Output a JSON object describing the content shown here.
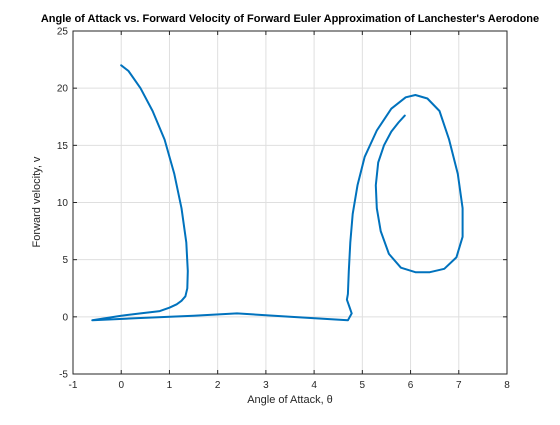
{
  "chart_data": {
    "type": "line",
    "title": "Angle of Attack vs. Forward Velocity of Forward Euler Approximation of Lanchester's Aerodone",
    "xlabel": "Angle of Attack, θ",
    "ylabel": "Forward velocity, v",
    "xlim": [
      -1,
      8
    ],
    "ylim": [
      -5,
      25
    ],
    "xticks": [
      -1,
      0,
      1,
      2,
      3,
      4,
      5,
      6,
      7,
      8
    ],
    "yticks": [
      -5,
      0,
      5,
      10,
      15,
      20,
      25
    ],
    "xtick_labels": [
      "-1",
      "0",
      "1",
      "2",
      "3",
      "4",
      "5",
      "6",
      "7",
      "8"
    ],
    "ytick_labels": [
      "-5",
      "0",
      "5",
      "10",
      "15",
      "20",
      "25"
    ],
    "grid": true,
    "line_color": "#0072BD",
    "series": [
      {
        "x": [
          0.0,
          0.15,
          0.4,
          0.65,
          0.9,
          1.1,
          1.25,
          1.35,
          1.38,
          1.37,
          1.33,
          1.25,
          1.15,
          1.0,
          0.8,
          0.4,
          0.0,
          -0.3,
          -0.6,
          0.4,
          1.5,
          2.4,
          3.5,
          4.7,
          4.78,
          4.73,
          4.68,
          4.7,
          4.72,
          4.75,
          4.8,
          4.9,
          5.05,
          5.3,
          5.6,
          5.9,
          6.1,
          6.35,
          6.6,
          6.8,
          6.98,
          7.08,
          7.08,
          6.95,
          6.7,
          6.4,
          6.1,
          5.8,
          5.55,
          5.38,
          5.3,
          5.28,
          5.33,
          5.45,
          5.6,
          5.75,
          5.88
        ],
        "y": [
          22.0,
          21.5,
          20.0,
          18.0,
          15.5,
          12.5,
          9.5,
          6.5,
          4.0,
          2.5,
          1.8,
          1.4,
          1.1,
          0.8,
          0.5,
          0.3,
          0.1,
          -0.1,
          -0.3,
          -0.1,
          0.1,
          0.3,
          0.0,
          -0.3,
          0.3,
          0.9,
          1.5,
          2.0,
          4.0,
          6.5,
          9.0,
          11.5,
          14.0,
          16.3,
          18.2,
          19.2,
          19.4,
          19.1,
          18.0,
          15.5,
          12.5,
          9.5,
          7.0,
          5.2,
          4.2,
          3.9,
          3.9,
          4.3,
          5.5,
          7.5,
          9.5,
          11.5,
          13.5,
          15.0,
          16.2,
          17.0,
          17.6
        ]
      }
    ]
  }
}
